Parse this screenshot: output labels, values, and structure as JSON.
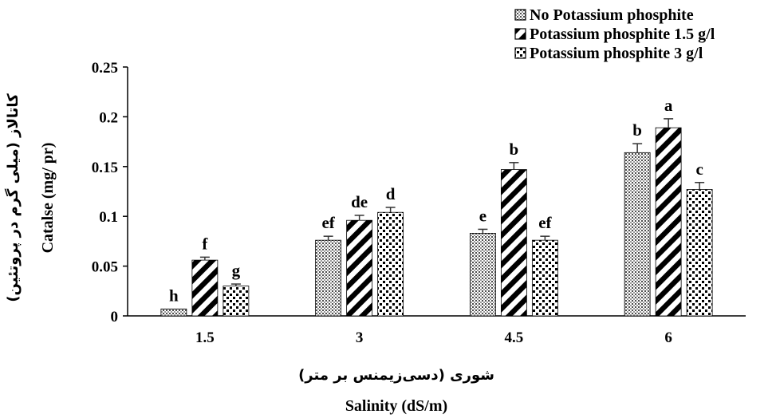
{
  "chart_data": {
    "type": "bar",
    "categories": [
      "1.5",
      "3",
      "4.5",
      "6"
    ],
    "series": [
      {
        "name": "No Potassium phosphite",
        "pattern": "grid-dots",
        "values": [
          0.007,
          0.076,
          0.083,
          0.164
        ],
        "errors": [
          0.0,
          0.004,
          0.004,
          0.009
        ],
        "letters": [
          "h",
          "ef",
          "e",
          "b"
        ]
      },
      {
        "name": "Potassium phosphite 1.5 g/l",
        "pattern": "diagonal-stripes",
        "values": [
          0.056,
          0.096,
          0.147,
          0.189
        ],
        "errors": [
          0.003,
          0.005,
          0.007,
          0.009
        ],
        "letters": [
          "f",
          "de",
          "b",
          "a"
        ]
      },
      {
        "name": "Potassium phosphite 3 g/l",
        "pattern": "checker-dots",
        "values": [
          0.03,
          0.104,
          0.076,
          0.127
        ],
        "errors": [
          0.002,
          0.005,
          0.004,
          0.007
        ],
        "letters": [
          "g",
          "d",
          "ef",
          "c"
        ]
      }
    ],
    "y_ticks": [
      "0",
      "0.05",
      "0.1",
      "0.15",
      "0.2",
      "0.25"
    ],
    "ylim": [
      0,
      0.25
    ],
    "xlabel": "Salinity (dS/m)",
    "xlabel_fa": "شوری (دسی‌زیمنس بر متر)",
    "ylabel": "Catalse (mg/ pr)",
    "ylabel_fa": "کاتالاز (میلی گرم در پروتئین)",
    "grid": false,
    "legend_position": "top-right"
  }
}
